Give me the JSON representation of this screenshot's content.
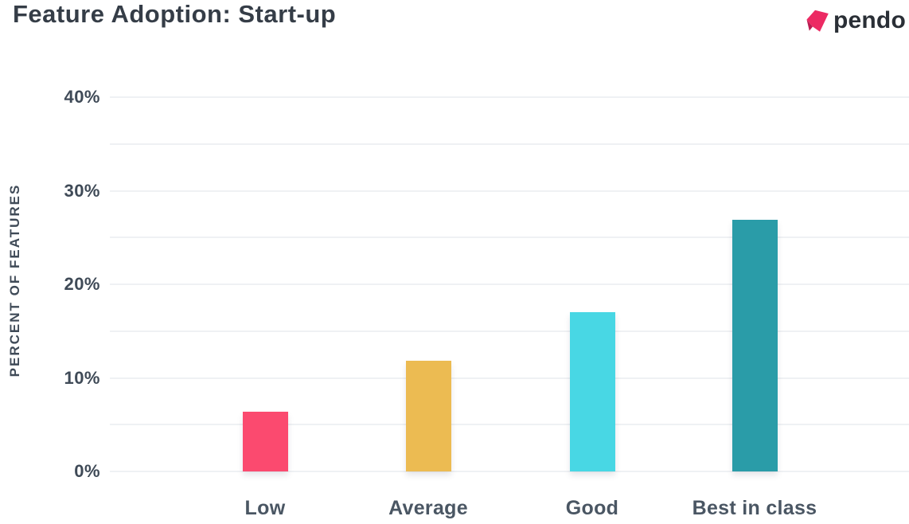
{
  "header": {
    "title": "Feature Adoption: Start-up",
    "logo": {
      "wordmark": "pendo"
    }
  },
  "colors": {
    "title_text": "#353d47",
    "axis_text": "#3f4a57",
    "category_text": "#4a5663",
    "gridline": "#eff1f4",
    "logo_pink": "#ec2a63",
    "logo_fold": "#bb1d52",
    "logo_text": "#2a2f36"
  },
  "chart_data": {
    "type": "bar",
    "title": "Feature Adoption: Start-up",
    "categories": [
      "Low",
      "Average",
      "Good",
      "Best in class"
    ],
    "values": [
      6.4,
      11.8,
      17.0,
      26.9
    ],
    "unit": "%",
    "bar_colors": [
      "#fb4a6f",
      "#ecbb52",
      "#48d7e4",
      "#2a9ca8"
    ],
    "xlabel": "",
    "ylabel": "PERCENT OF FEATURES",
    "ylim": [
      0,
      40
    ],
    "y_tick_labels": [
      "40%",
      "30%",
      "20%",
      "10%",
      "0%"
    ],
    "y_tick_values": [
      40,
      30,
      20,
      10,
      0
    ],
    "minor_grid_step": 5,
    "grid": true,
    "legend": false
  }
}
